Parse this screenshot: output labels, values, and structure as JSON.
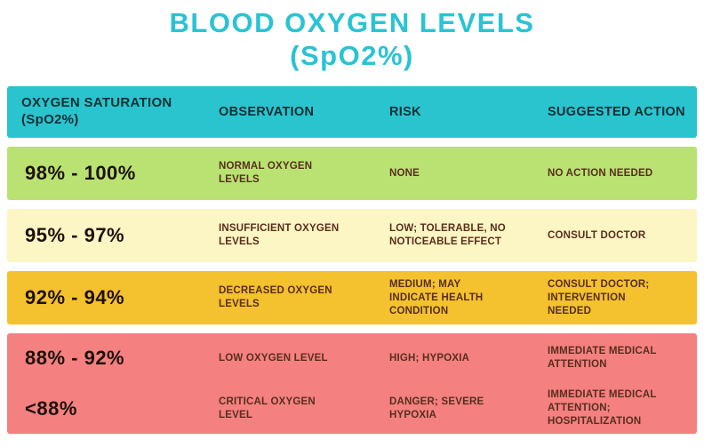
{
  "title": {
    "line1": "BLOOD OXYGEN LEVELS",
    "line2": "(SpO2%)"
  },
  "colors": {
    "accent": "#29c3d4",
    "header_bg": "#2ac4cf",
    "header_text": "#0e2f33",
    "row_green": "#b9e273",
    "row_cream": "#fcf5c4",
    "row_gold": "#f4c12f",
    "row_red": "#f48080",
    "value_text": "#1d1109",
    "cell_text": "#582f1c"
  },
  "table": {
    "headers": {
      "saturation": "OXYGEN SATURATION\n(SpO2%)",
      "observation": "OBSERVATION",
      "risk": "RISK",
      "action": "SUGGESTED ACTION"
    },
    "rows": [
      {
        "saturation": "98% - 100%",
        "observation": "NORMAL OXYGEN LEVELS",
        "risk": "NONE",
        "action": "NO ACTION NEEDED"
      },
      {
        "saturation": "95% - 97%",
        "observation": "INSUFFICIENT OXYGEN LEVELS",
        "risk": "LOW; TOLERABLE, NO NOTICEABLE EFFECT",
        "action": "CONSULT DOCTOR"
      },
      {
        "saturation": "92% - 94%",
        "observation": "DECREASED OXYGEN LEVELS",
        "risk": "MEDIUM; MAY INDICATE HEALTH CONDITION",
        "action": "CONSULT DOCTOR; INTERVENTION NEEDED"
      },
      {
        "saturation": "88% - 92%",
        "observation": "LOW OXYGEN LEVEL",
        "risk": "HIGH; HYPOXIA",
        "action": "IMMEDIATE MEDICAL ATTENTION"
      },
      {
        "saturation": "<88%",
        "observation": "CRITICAL OXYGEN LEVEL",
        "risk": "DANGER; SEVERE HYPOXIA",
        "action": "IMMEDIATE MEDICAL ATTENTION; HOSPITALIZATION"
      }
    ]
  },
  "chart_data": {
    "type": "table",
    "title": "BLOOD OXYGEN LEVELS (SpO2%)",
    "columns": [
      "OXYGEN SATURATION (SpO2%)",
      "OBSERVATION",
      "RISK",
      "SUGGESTED ACTION"
    ],
    "rows": [
      [
        "98% - 100%",
        "NORMAL OXYGEN LEVELS",
        "NONE",
        "NO ACTION NEEDED"
      ],
      [
        "95% - 97%",
        "INSUFFICIENT OXYGEN LEVELS",
        "LOW; TOLERABLE, NO NOTICEABLE EFFECT",
        "CONSULT DOCTOR"
      ],
      [
        "92% - 94%",
        "DECREASED OXYGEN LEVELS",
        "MEDIUM; MAY INDICATE HEALTH CONDITION",
        "CONSULT DOCTOR; INTERVENTION NEEDED"
      ],
      [
        "88% - 92%",
        "LOW OXYGEN LEVEL",
        "HIGH; HYPOXIA",
        "IMMEDIATE MEDICAL ATTENTION"
      ],
      [
        "<88%",
        "CRITICAL OXYGEN LEVEL",
        "DANGER; SEVERE HYPOXIA",
        "IMMEDIATE MEDICAL ATTENTION; HOSPITALIZATION"
      ]
    ],
    "row_colors": [
      "#b9e273",
      "#fcf5c4",
      "#f4c12f",
      "#f48080",
      "#f48080"
    ]
  }
}
